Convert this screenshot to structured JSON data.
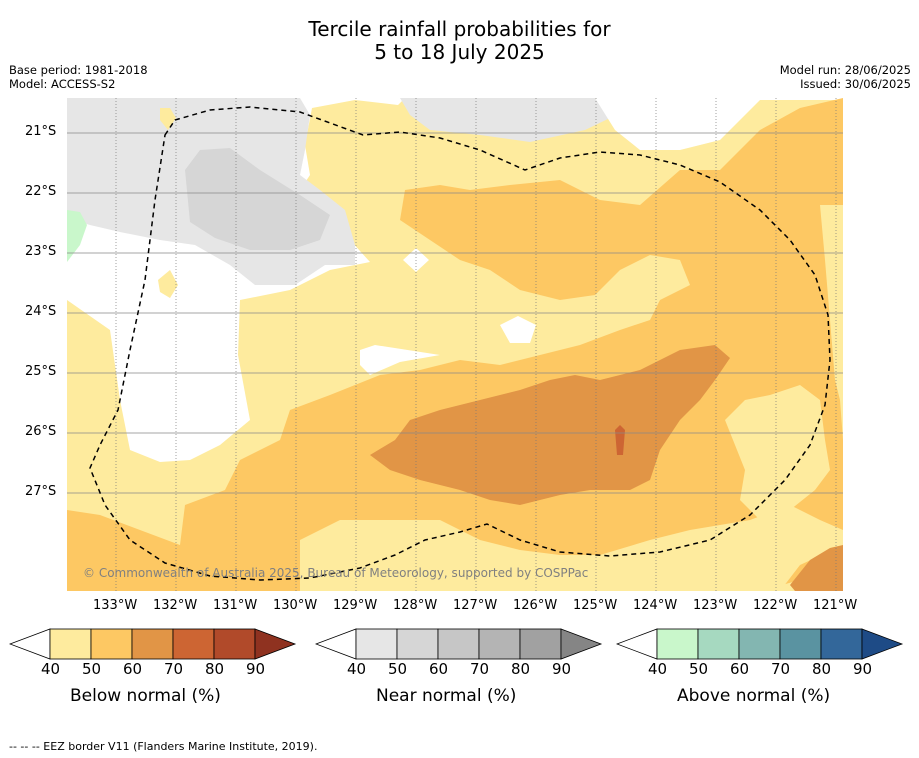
{
  "title_line1": "Tercile rainfall probabilities for",
  "title_line2": "5 to 18 July 2025",
  "base_period": "Base period: 1981-2018",
  "model": "Model: ACCESS-S2",
  "model_run": "Model run: 28/06/2025",
  "issued": "Issued: 30/06/2025",
  "latitudes": [
    "21°S",
    "22°S",
    "23°S",
    "24°S",
    "25°S",
    "26°S",
    "27°S"
  ],
  "longitudes": [
    "133°W",
    "132°W",
    "131°W",
    "130°W",
    "129°W",
    "128°W",
    "127°W",
    "126°W",
    "125°W",
    "124°W",
    "123°W",
    "122°W",
    "121°W"
  ],
  "copyright": "© Commonwealth of Australia 2025, Bureau of Meteorology, supported by COSPPac",
  "colorbars": [
    {
      "title": "Below normal (%)",
      "ticks": [
        "40",
        "50",
        "60",
        "70",
        "80",
        "90"
      ],
      "colors": [
        "#ffffff",
        "#feeb9e",
        "#fdc863",
        "#e19546",
        "#cd6533",
        "#b14a2a",
        "#8f3220"
      ]
    },
    {
      "title": "Near normal (%)",
      "ticks": [
        "40",
        "50",
        "60",
        "70",
        "80",
        "90"
      ],
      "colors": [
        "#ffffff",
        "#e6e6e6",
        "#d6d6d6",
        "#c6c6c6",
        "#b4b4b4",
        "#a1a1a1",
        "#858585"
      ]
    },
    {
      "title": "Above normal (%)",
      "ticks": [
        "40",
        "50",
        "60",
        "70",
        "80",
        "90"
      ],
      "colors": [
        "#ffffff",
        "#c9f7cb",
        "#a6d9c0",
        "#83b6b1",
        "#5a93a1",
        "#33679a",
        "#1e4b86"
      ]
    }
  ],
  "footnote": "--  --  -- EEZ border V11 (Flanders Marine Institute, 2019)."
}
